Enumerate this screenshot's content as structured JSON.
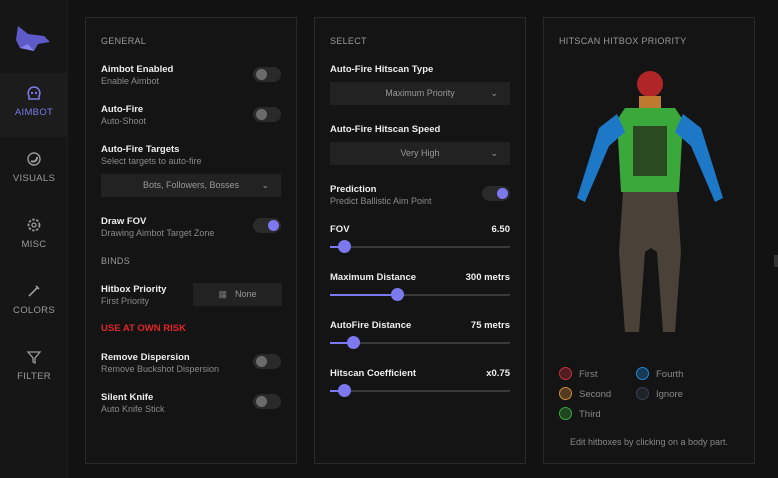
{
  "sidebar": {
    "items": [
      {
        "label": "AIMBOT",
        "icon": "skull-icon",
        "active": true
      },
      {
        "label": "VISUALS",
        "icon": "eye-icon"
      },
      {
        "label": "MISC",
        "icon": "gear-icon"
      },
      {
        "label": "COLORS",
        "icon": "eyedropper-icon"
      },
      {
        "label": "FILTER",
        "icon": "filter-icon"
      }
    ]
  },
  "general": {
    "title": "GENERAL",
    "aimbot_enabled": {
      "label": "Aimbot Enabled",
      "sub": "Enable Aimbot",
      "on": false
    },
    "auto_fire": {
      "label": "Auto-Fire",
      "sub": "Auto-Shoot",
      "on": false
    },
    "targets": {
      "label": "Auto-Fire Targets",
      "sub": "Select targets to auto-fire",
      "value": "Bots, Followers, Bosses"
    },
    "draw_fov": {
      "label": "Draw FOV",
      "sub": "Drawing Aimbot Target Zone",
      "on": true
    },
    "binds": "BINDS",
    "hitbox": {
      "label": "Hitbox Priority",
      "sub": "First Priority",
      "value": "None"
    },
    "risk": "USE AT OWN RISK",
    "dispersion": {
      "label": "Remove Dispersion",
      "sub": "Remove Buckshot Dispersion",
      "on": false
    },
    "knife": {
      "label": "Silent Knife",
      "sub": "Auto Knife Stick",
      "on": false
    }
  },
  "select": {
    "title": "SELECT",
    "type": {
      "label": "Auto-Fire Hitscan Type",
      "value": "Maximum Priority"
    },
    "speed": {
      "label": "Auto-Fire Hitscan Speed",
      "value": "Very High"
    },
    "prediction": {
      "label": "Prediction",
      "sub": "Predict Ballistic Aim Point",
      "on": true
    },
    "sliders": [
      {
        "label": "FOV",
        "value": "6.50",
        "fraction": 0.08
      },
      {
        "label": "Maximum Distance",
        "value": "300 metrs",
        "fraction": 0.37
      },
      {
        "label": "AutoFire Distance",
        "value": "75 metrs",
        "fraction": 0.13
      },
      {
        "label": "Hitscan Coefficient",
        "value": "x0.75",
        "fraction": 0.08
      }
    ]
  },
  "hitbox": {
    "title": "HITSCAN HITBOX PRIORITY",
    "legend": [
      {
        "label": "First",
        "color": "#c8303a"
      },
      {
        "label": "Second",
        "color": "#d08a3a"
      },
      {
        "label": "Third",
        "color": "#3aa83a"
      },
      {
        "label": "Fourth",
        "color": "#1e88d8"
      },
      {
        "label": "Ignore",
        "color": "#3a3f55"
      }
    ],
    "hint": "Edit hitboxes by clicking on a body part."
  },
  "colors": {
    "accent": "#7b78f0",
    "danger": "#e0262a"
  }
}
